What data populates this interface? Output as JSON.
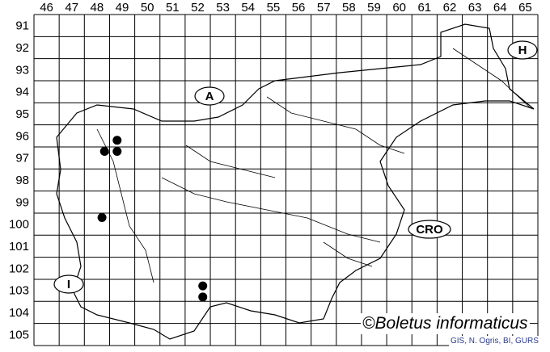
{
  "map": {
    "columns": [
      "46",
      "47",
      "48",
      "49",
      "50",
      "51",
      "52",
      "53",
      "54",
      "55",
      "56",
      "57",
      "58",
      "59",
      "60",
      "61",
      "62",
      "63",
      "64",
      "65"
    ],
    "rows": [
      "91",
      "92",
      "93",
      "94",
      "95",
      "96",
      "97",
      "98",
      "99",
      "100",
      "101",
      "102",
      "103",
      "104",
      "105"
    ],
    "country_labels": [
      {
        "id": "austria",
        "text": "A"
      },
      {
        "id": "hungary",
        "text": "H"
      },
      {
        "id": "croatia",
        "text": "CRO"
      },
      {
        "id": "italy",
        "text": "I"
      }
    ],
    "records": [
      {
        "col": 49.3,
        "row": 96.7
      },
      {
        "col": 48.8,
        "row": 97.2
      },
      {
        "col": 49.3,
        "row": 97.2
      },
      {
        "col": 48.7,
        "row": 100.2
      },
      {
        "col": 52.7,
        "row": 103.3
      },
      {
        "col": 52.7,
        "row": 103.8
      }
    ],
    "record_color": "#000000",
    "copyright": "©Boletus informaticus",
    "credit": "GIS, N. Ogris, BI, GURS"
  }
}
